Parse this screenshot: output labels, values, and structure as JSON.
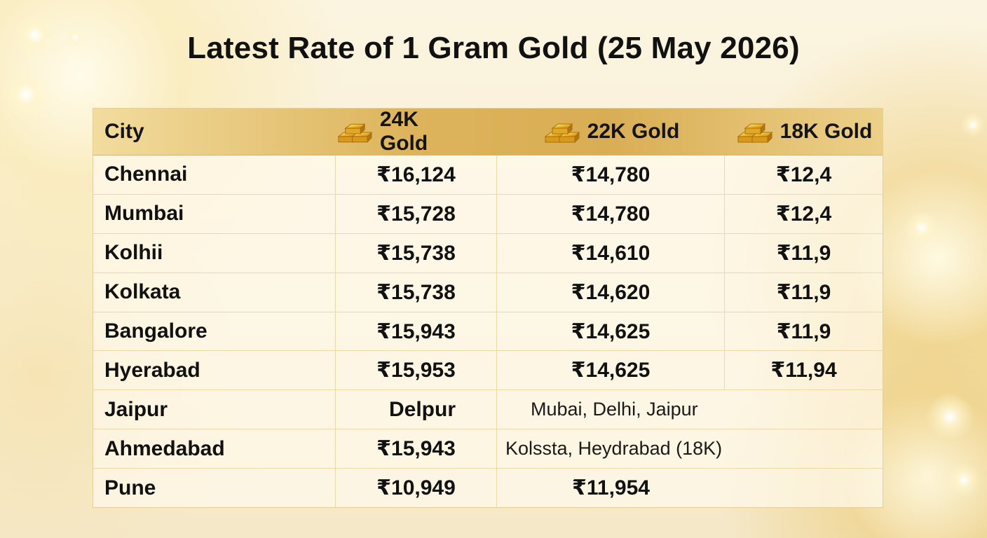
{
  "title": "Latest Rate of 1 Gram Gold (25 May 2026)",
  "table": {
    "columns": [
      "City",
      "24K Gold",
      "22K Gold",
      "18K Gold"
    ],
    "header_icon": "gold-bars-icon",
    "rows": [
      {
        "city": "Chennai",
        "k24": "₹16,124",
        "k22": "₹14,780",
        "k18": "₹12,4"
      },
      {
        "city": "Mumbai",
        "k24": "₹15,728",
        "k22": "₹14,780",
        "k18": "₹12,4"
      },
      {
        "city": "Kolhii",
        "k24": "₹15,738",
        "k22": "₹14,610",
        "k18": "₹11,9"
      },
      {
        "city": "Kolkata",
        "k24": "₹15,738",
        "k22": "₹14,620",
        "k18": "₹11,9"
      },
      {
        "city": "Bangalore",
        "k24": "₹15,943",
        "k22": "₹14,625",
        "k18": "₹11,9"
      },
      {
        "city": "Hyerabad",
        "k24": "₹15,953",
        "k22": "₹14,625",
        "k18": "₹11,94"
      },
      {
        "city": "Jaipur",
        "k24": "Delpur",
        "note": "Mubai, Delhi, Jaipur"
      },
      {
        "city": "Ahmedabad",
        "k24": "₹15,943",
        "note": "Kolssta, Heydrabad (18K)"
      },
      {
        "city": "Pune",
        "k24": "₹10,949",
        "k22": "₹11,954"
      }
    ]
  },
  "colors": {
    "header_gold": "#ddb45c",
    "grid_line": "#ecd9a7",
    "text": "#111111"
  }
}
